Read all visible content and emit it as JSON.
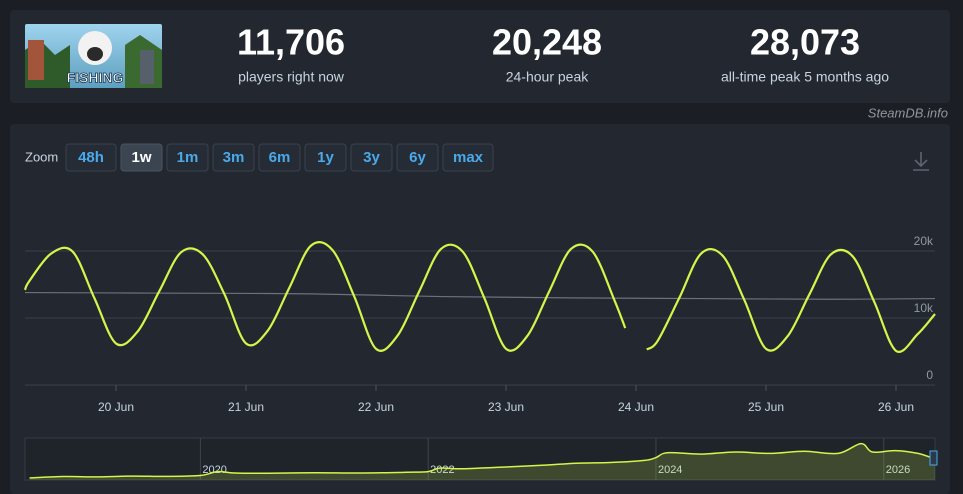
{
  "header": {
    "stats": [
      {
        "value": "11,706",
        "label": "players right now"
      },
      {
        "value": "20,248",
        "label": "24-hour peak"
      },
      {
        "value": "28,073",
        "label": "all-time peak 5 months ago"
      }
    ],
    "logo_text": "FISHING",
    "source": "SteamDB.info"
  },
  "zoom": {
    "label": "Zoom",
    "options": [
      "48h",
      "1w",
      "1m",
      "3m",
      "6m",
      "1y",
      "3y",
      "6y",
      "max"
    ],
    "active": 1
  },
  "chart_data": [
    {
      "type": "line",
      "xlim": [
        19.3,
        26.3
      ],
      "xticks": [
        {
          "value": 20,
          "label": "20 Jun"
        },
        {
          "value": 21,
          "label": "21 Jun"
        },
        {
          "value": 22,
          "label": "22 Jun"
        },
        {
          "value": 23,
          "label": "23 Jun"
        },
        {
          "value": 24,
          "label": "24 Jun"
        },
        {
          "value": 25,
          "label": "25 Jun"
        },
        {
          "value": 26,
          "label": "26 Jun"
        }
      ],
      "ylim": [
        0,
        30000
      ],
      "yticks": [
        0,
        {
          "value": 10000,
          "label": "10k"
        },
        {
          "value": 20000,
          "label": "20k"
        }
      ],
      "grid": true,
      "series": [
        {
          "color": "#d4f54a",
          "x": [
            19.3,
            19.333,
            19.5,
            19.667,
            19.833,
            20.0,
            20.167,
            20.333,
            20.5,
            20.667,
            20.833,
            21.0,
            21.167,
            21.333,
            21.5,
            21.667,
            21.833,
            22.0,
            22.167,
            22.333,
            22.5,
            22.667,
            22.833,
            23.0,
            23.167,
            23.333,
            23.5,
            23.667,
            23.833,
            23.917,
            24.0,
            24.083,
            24.167,
            24.333,
            24.5,
            24.667,
            24.833,
            25.0,
            25.167,
            25.333,
            25.5,
            25.667,
            25.833,
            26.0,
            26.167,
            26.3
          ],
          "values": [
            14200,
            15500,
            19600,
            19900,
            13000,
            6200,
            8000,
            14000,
            19800,
            19500,
            13600,
            6200,
            8100,
            14500,
            20800,
            20100,
            13200,
            5400,
            7400,
            14000,
            20300,
            19900,
            13000,
            5400,
            7400,
            14000,
            20300,
            19900,
            12700,
            8500,
            null,
            5300,
            6600,
            13000,
            19600,
            19300,
            12700,
            5400,
            7300,
            13500,
            19500,
            19200,
            12400,
            5100,
            7600,
            10600
          ]
        },
        {
          "color": "#6b727c",
          "x": [
            19.3,
            20.5,
            21.5,
            22.5,
            23.5,
            24.5,
            25.5,
            26.3
          ],
          "values": [
            13800,
            13700,
            13600,
            13200,
            13000,
            12900,
            12800,
            12900
          ]
        }
      ]
    },
    {
      "type": "area",
      "xlim": [
        2018.46,
        2026.45
      ],
      "xticks": [
        2020,
        2022,
        2024,
        2026
      ],
      "ylim": [
        0,
        30000
      ],
      "color": "#d4f54a",
      "x": [
        2018.5,
        2018.8,
        2019.1,
        2019.4,
        2019.7,
        2020.0,
        2020.15,
        2020.3,
        2020.6,
        2021.0,
        2021.4,
        2021.8,
        2022.0,
        2022.1,
        2022.3,
        2022.6,
        2023.0,
        2023.3,
        2023.6,
        2023.9,
        2024.0,
        2024.1,
        2024.4,
        2024.7,
        2025.0,
        2025.3,
        2025.6,
        2025.8,
        2025.9,
        2026.1,
        2026.3,
        2026.45
      ],
      "values": [
        1500,
        2500,
        2200,
        2800,
        2600,
        3200,
        6000,
        5000,
        4800,
        5200,
        5000,
        5500,
        6000,
        8500,
        8000,
        9000,
        10500,
        12000,
        12500,
        14000,
        16000,
        19500,
        18500,
        20000,
        19000,
        20500,
        19000,
        26000,
        20000,
        21000,
        19000,
        15000
      ]
    }
  ]
}
